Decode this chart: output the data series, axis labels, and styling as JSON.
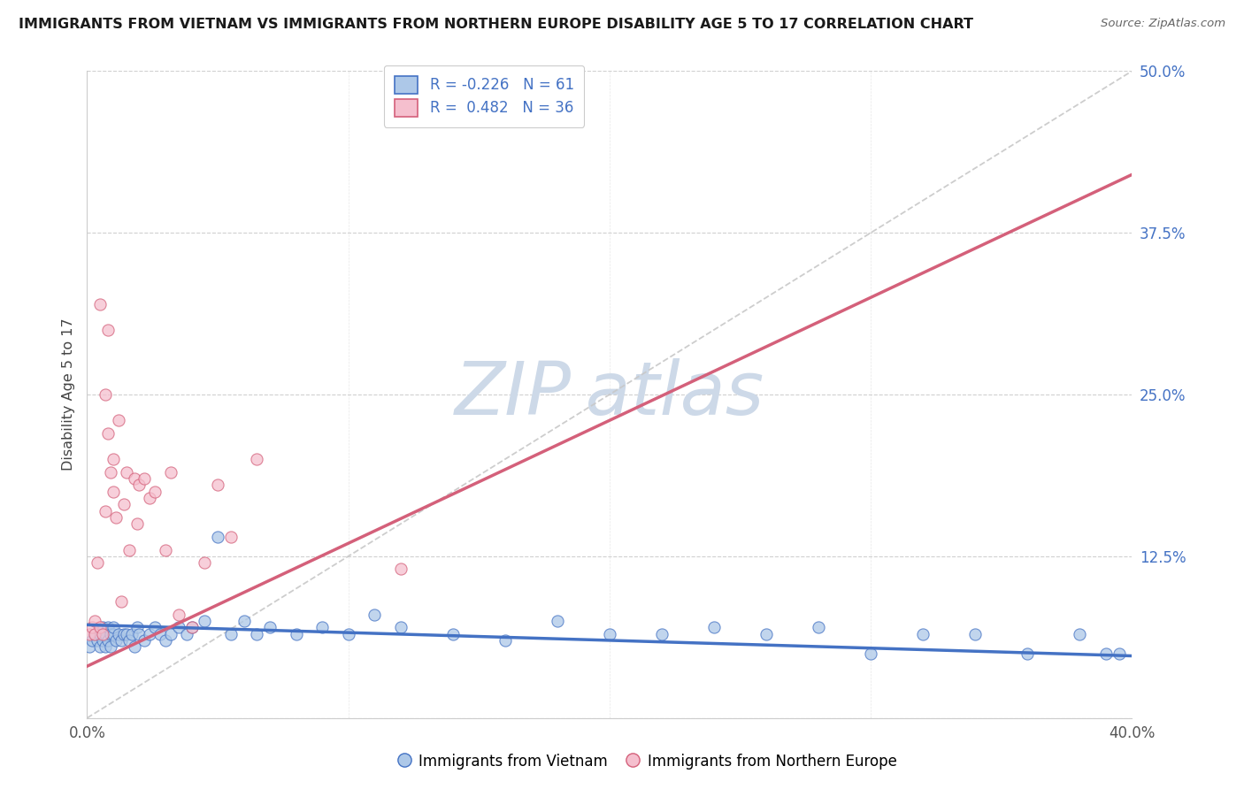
{
  "title": "IMMIGRANTS FROM VIETNAM VS IMMIGRANTS FROM NORTHERN EUROPE DISABILITY AGE 5 TO 17 CORRELATION CHART",
  "source": "Source: ZipAtlas.com",
  "xlabel_blue": "Immigrants from Vietnam",
  "xlabel_pink": "Immigrants from Northern Europe",
  "ylabel": "Disability Age 5 to 17",
  "xlim": [
    0.0,
    0.4
  ],
  "ylim": [
    0.0,
    0.5
  ],
  "xticks": [
    0.0,
    0.1,
    0.2,
    0.3,
    0.4
  ],
  "yticks": [
    0.0,
    0.125,
    0.25,
    0.375,
    0.5
  ],
  "ytick_labels": [
    "",
    "12.5%",
    "25.0%",
    "37.5%",
    "50.0%"
  ],
  "xtick_labels": [
    "0.0%",
    "",
    "",
    "",
    "40.0%"
  ],
  "blue_R": -0.226,
  "blue_N": 61,
  "pink_R": 0.482,
  "pink_N": 36,
  "blue_face_color": "#adc8e8",
  "blue_edge_color": "#4472c4",
  "pink_face_color": "#f5bfce",
  "pink_edge_color": "#d4607a",
  "blue_line_color": "#4472c4",
  "pink_line_color": "#d4607a",
  "ref_line_color": "#c8c8c8",
  "grid_color": "#d0d0d0",
  "title_color": "#1a1a1a",
  "ytick_color": "#4472c4",
  "xtick_color": "#555555",
  "blue_scatter_x": [
    0.001,
    0.002,
    0.003,
    0.004,
    0.005,
    0.005,
    0.006,
    0.006,
    0.007,
    0.007,
    0.008,
    0.008,
    0.009,
    0.009,
    0.01,
    0.01,
    0.011,
    0.012,
    0.013,
    0.014,
    0.015,
    0.016,
    0.017,
    0.018,
    0.019,
    0.02,
    0.022,
    0.024,
    0.026,
    0.028,
    0.03,
    0.032,
    0.035,
    0.038,
    0.04,
    0.045,
    0.05,
    0.055,
    0.06,
    0.065,
    0.07,
    0.08,
    0.09,
    0.1,
    0.11,
    0.12,
    0.14,
    0.16,
    0.18,
    0.2,
    0.22,
    0.24,
    0.26,
    0.28,
    0.3,
    0.32,
    0.34,
    0.36,
    0.38,
    0.39,
    0.395
  ],
  "blue_scatter_y": [
    0.055,
    0.06,
    0.065,
    0.06,
    0.055,
    0.065,
    0.06,
    0.07,
    0.055,
    0.065,
    0.06,
    0.07,
    0.065,
    0.055,
    0.065,
    0.07,
    0.06,
    0.065,
    0.06,
    0.065,
    0.065,
    0.06,
    0.065,
    0.055,
    0.07,
    0.065,
    0.06,
    0.065,
    0.07,
    0.065,
    0.06,
    0.065,
    0.07,
    0.065,
    0.07,
    0.075,
    0.14,
    0.065,
    0.075,
    0.065,
    0.07,
    0.065,
    0.07,
    0.065,
    0.08,
    0.07,
    0.065,
    0.06,
    0.075,
    0.065,
    0.065,
    0.07,
    0.065,
    0.07,
    0.05,
    0.065,
    0.065,
    0.05,
    0.065,
    0.05,
    0.05
  ],
  "pink_scatter_x": [
    0.001,
    0.002,
    0.003,
    0.003,
    0.004,
    0.005,
    0.005,
    0.006,
    0.007,
    0.007,
    0.008,
    0.008,
    0.009,
    0.01,
    0.01,
    0.011,
    0.012,
    0.013,
    0.014,
    0.015,
    0.016,
    0.018,
    0.019,
    0.02,
    0.022,
    0.024,
    0.026,
    0.03,
    0.032,
    0.035,
    0.04,
    0.045,
    0.05,
    0.055,
    0.065,
    0.12
  ],
  "pink_scatter_y": [
    0.065,
    0.07,
    0.065,
    0.075,
    0.12,
    0.32,
    0.07,
    0.065,
    0.25,
    0.16,
    0.22,
    0.3,
    0.19,
    0.2,
    0.175,
    0.155,
    0.23,
    0.09,
    0.165,
    0.19,
    0.13,
    0.185,
    0.15,
    0.18,
    0.185,
    0.17,
    0.175,
    0.13,
    0.19,
    0.08,
    0.07,
    0.12,
    0.18,
    0.14,
    0.2,
    0.115
  ],
  "pink_trend_x0": 0.0,
  "pink_trend_y0": 0.04,
  "pink_trend_x1": 0.4,
  "pink_trend_y1": 0.42,
  "blue_trend_x0": 0.0,
  "blue_trend_y0": 0.072,
  "blue_trend_x1": 0.4,
  "blue_trend_y1": 0.048
}
